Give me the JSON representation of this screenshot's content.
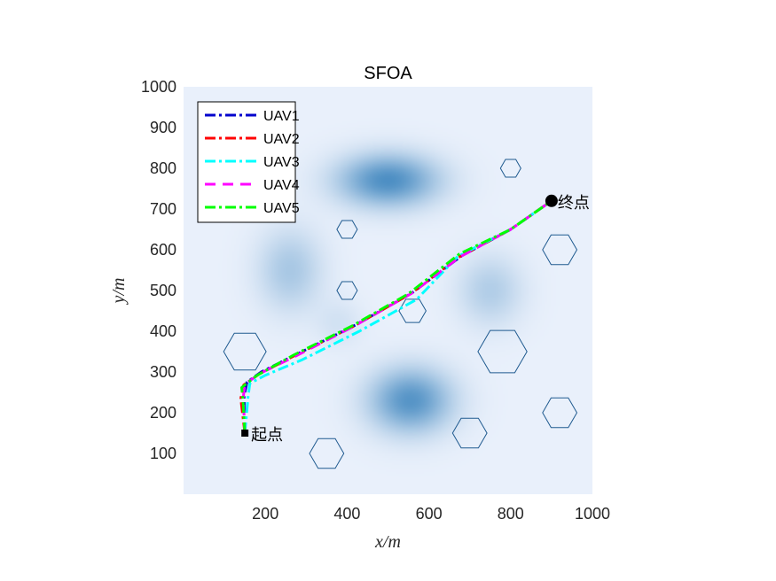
{
  "chart_data": {
    "type": "line",
    "title": "SFOA",
    "xlabel": "x/m",
    "ylabel": "y/m",
    "xlim": [
      0,
      1000
    ],
    "ylim": [
      0,
      1000
    ],
    "xticks": [
      200,
      400,
      600,
      800,
      1000
    ],
    "yticks": [
      100,
      200,
      300,
      400,
      500,
      600,
      700,
      800,
      900,
      1000
    ],
    "grid": false,
    "legend_position": "top-left",
    "background": "terrain-heatmap",
    "terrain_peaks": [
      {
        "x": 500,
        "y": 770,
        "sx": 85,
        "sy": 45,
        "strength": 0.85
      },
      {
        "x": 555,
        "y": 230,
        "sx": 70,
        "sy": 55,
        "strength": 0.8
      },
      {
        "x": 260,
        "y": 550,
        "sx": 55,
        "sy": 70,
        "strength": 0.35
      },
      {
        "x": 750,
        "y": 500,
        "sx": 55,
        "sy": 60,
        "strength": 0.3
      },
      {
        "x": 380,
        "y": 420,
        "sx": 40,
        "sy": 40,
        "strength": 0.12
      }
    ],
    "obstacles": [
      {
        "x": 150,
        "y": 350,
        "r": 52
      },
      {
        "x": 350,
        "y": 100,
        "r": 42
      },
      {
        "x": 400,
        "y": 650,
        "r": 25
      },
      {
        "x": 400,
        "y": 500,
        "r": 25
      },
      {
        "x": 560,
        "y": 450,
        "r": 33
      },
      {
        "x": 700,
        "y": 150,
        "r": 42
      },
      {
        "x": 780,
        "y": 350,
        "r": 60
      },
      {
        "x": 800,
        "y": 800,
        "r": 25
      },
      {
        "x": 920,
        "y": 600,
        "r": 42
      },
      {
        "x": 920,
        "y": 200,
        "r": 42
      }
    ],
    "start_point": {
      "x": 150,
      "y": 150,
      "label": "起点"
    },
    "end_point": {
      "x": 900,
      "y": 720,
      "label": "终点"
    },
    "series": [
      {
        "name": "UAV1",
        "color": "#0000cc",
        "dash": "dashdot",
        "x": [
          150,
          148,
          155,
          190,
          280,
          420,
          560,
          680,
          800,
          900
        ],
        "y": [
          150,
          240,
          275,
          300,
          345,
          415,
          495,
          585,
          650,
          720
        ]
      },
      {
        "name": "UAV2",
        "color": "#ff0000",
        "dash": "dashdot",
        "x": [
          150,
          140,
          147,
          185,
          275,
          415,
          555,
          670,
          800,
          900
        ],
        "y": [
          150,
          235,
          268,
          295,
          342,
          412,
          492,
          580,
          650,
          720
        ]
      },
      {
        "name": "UAV3",
        "color": "#00ffff",
        "dash": "dashdot",
        "x": [
          150,
          158,
          162,
          200,
          290,
          430,
          570,
          670,
          800,
          900
        ],
        "y": [
          150,
          240,
          272,
          292,
          330,
          400,
          478,
          583,
          650,
          720
        ]
      },
      {
        "name": "UAV4",
        "color": "#ff00ff",
        "dash": "dash",
        "x": [
          150,
          146,
          150,
          188,
          280,
          418,
          558,
          675,
          800,
          900
        ],
        "y": [
          150,
          238,
          270,
          297,
          342,
          413,
          493,
          582,
          650,
          720
        ]
      },
      {
        "name": "UAV5",
        "color": "#00ff00",
        "dash": "dashdot",
        "x": [
          150,
          145,
          142,
          180,
          270,
          410,
          550,
          675,
          800,
          900
        ],
        "y": [
          150,
          235,
          262,
          292,
          342,
          412,
          492,
          590,
          650,
          720
        ]
      }
    ]
  }
}
